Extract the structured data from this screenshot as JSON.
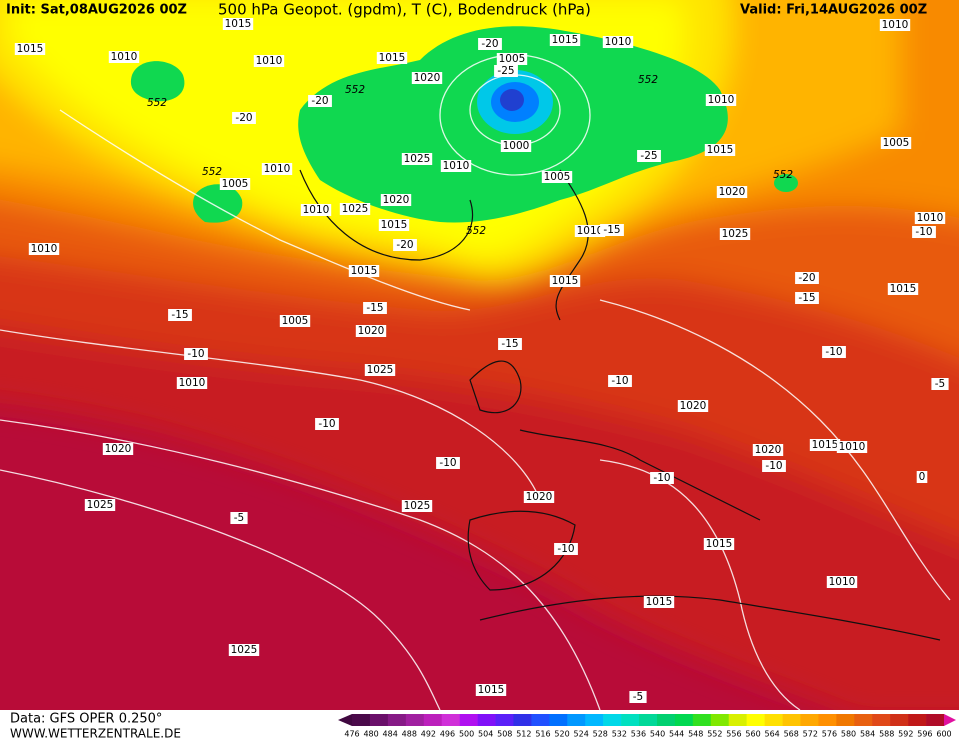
{
  "header": {
    "init": "Init: Sat,08AUG2026 00Z",
    "title": "500 hPa Geopot. (gpdm), T (C), Bodendruck (hPa)",
    "valid": "Valid: Fri,14AUG2026 00Z"
  },
  "footer": {
    "data": "Data: GFS OPER 0.250°",
    "site": "WWW.WETTERZENTRALE.DE"
  },
  "colorbar": {
    "labels": [
      "476",
      "480",
      "484",
      "488",
      "492",
      "496",
      "500",
      "504",
      "508",
      "512",
      "516",
      "520",
      "524",
      "528",
      "532",
      "536",
      "540",
      "544",
      "548",
      "552",
      "556",
      "560",
      "564",
      "568",
      "572",
      "576",
      "580",
      "584",
      "588",
      "592",
      "596",
      "600"
    ],
    "colors": [
      "#4a0a4a",
      "#6a106a",
      "#861a86",
      "#a020a0",
      "#bc20bc",
      "#d030d8",
      "#b010f0",
      "#8010f8",
      "#5a20f8",
      "#3030e8",
      "#2050ff",
      "#0070ff",
      "#0098ff",
      "#00b8ff",
      "#00d8e8",
      "#00e0c0",
      "#00d898",
      "#00d070",
      "#00d850",
      "#30e020",
      "#80e800",
      "#d8f000",
      "#ffff00",
      "#ffe000",
      "#ffc400",
      "#ffa800",
      "#ff9000",
      "#f07800",
      "#e86010",
      "#e04818",
      "#d03018",
      "#c01818",
      "#b00c28"
    ],
    "arrow_left": "#400840",
    "arrow_right": "#e010a0"
  },
  "map": {
    "labels": [
      "1015",
      "1015",
      "1010",
      "1010",
      "552",
      "-20",
      "552",
      "1005",
      "1010",
      "-20",
      "552",
      "1015",
      "1020",
      "-20",
      "1005",
      "-25",
      "1015",
      "1010",
      "552",
      "1010",
      "1000",
      "1010",
      "1025",
      "1005",
      "-25",
      "1015",
      "552",
      "1010",
      "1005",
      "1020",
      "1025",
      "1010",
      "-10",
      "1010",
      "1010",
      "1025",
      "1020",
      "1015",
      "-20",
      "552",
      "1010",
      "-15",
      "1015",
      "1015",
      "-20",
      "-15",
      "1015",
      "-15",
      "1005",
      "-15",
      "1020",
      "-15",
      "-10",
      "-10",
      "1010",
      "1025",
      "-10",
      "-5",
      "1020",
      "-10",
      "1020",
      "-10",
      "1020",
      "1015",
      "1010",
      "-10",
      "-10",
      "0",
      "1020",
      "1025",
      "1025",
      "-5",
      "-10",
      "1015",
      "1010",
      "1015",
      "1025",
      "1015",
      "-5"
    ]
  }
}
